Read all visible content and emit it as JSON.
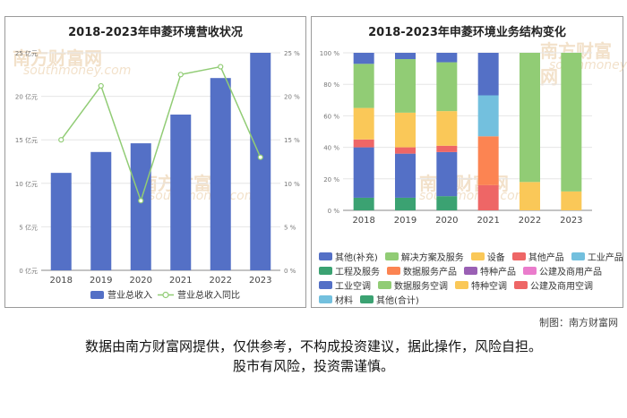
{
  "credit": "制图：南方财富网",
  "disclaimer": {
    "line1": "数据由南方财富网提供，仅供参考，不构成投资建议，据此操作，风险自担。",
    "line2": "股市有风险，投资需谨慎。"
  },
  "watermark": {
    "cn": "南方财富网",
    "en": "southmoney.com"
  },
  "colors": {
    "revenue": "#5470c6",
    "yoy": "#91cc75",
    "other_supp": "#5470c6",
    "solution": "#91cc75",
    "equipment": "#fac858",
    "other_products": "#ee6666",
    "industrial_products": "#73c0de",
    "engineering": "#3ba272",
    "data_service_products": "#fc8452",
    "special_products": "#9a60b4",
    "public_commercial_products": "#ea7ccc",
    "industrial_ac": "#5470c6",
    "data_service_ac": "#91cc75",
    "special_ac": "#fac858",
    "public_commercial_ac": "#ee6666",
    "materials": "#73c0de",
    "other_total": "#3ba272"
  },
  "chart_data": [
    {
      "type": "bar",
      "title": "2018-2023年申菱环境营收状况",
      "categories": [
        "2018",
        "2019",
        "2020",
        "2021",
        "2022",
        "2023"
      ],
      "series": [
        {
          "name": "营业总收入",
          "kind": "bar",
          "axis": "left",
          "color": "#5470c6",
          "values": [
            11.2,
            13.6,
            14.6,
            17.9,
            22.1,
            25.0
          ]
        },
        {
          "name": "营业总收入同比",
          "kind": "line",
          "axis": "right",
          "color": "#91cc75",
          "values": [
            15.0,
            21.2,
            8.0,
            22.5,
            23.4,
            13.0
          ]
        }
      ],
      "y_left": {
        "min": 0,
        "max": 25,
        "step": 5,
        "ticks": [
          "0 亿元",
          "5 亿元",
          "10 亿元",
          "15 亿元",
          "20 亿元",
          "25 亿元"
        ]
      },
      "y_right": {
        "min": 0,
        "max": 25,
        "step": 5,
        "ticks": [
          "0 %",
          "5 %",
          "10 %",
          "15 %",
          "20 %",
          "25 %"
        ]
      },
      "grid": true,
      "legend": "bottom"
    },
    {
      "type": "bar",
      "stacked": true,
      "title": "2018-2023年申菱环境业务结构变化",
      "categories": [
        "2018",
        "2019",
        "2020",
        "2021",
        "2022",
        "2023"
      ],
      "y_ticks": [
        "0 %",
        "20 %",
        "40 %",
        "60 %",
        "80 %",
        "100 %"
      ],
      "ylim": [
        0,
        100
      ],
      "grid": true,
      "legend": "bottom",
      "series": [
        {
          "name": "其他(合计)",
          "color": "#3ba272",
          "values": [
            8,
            8,
            9,
            0,
            0,
            0
          ]
        },
        {
          "name": "材料",
          "color": "#73c0de",
          "values": [
            0,
            0,
            0,
            0,
            0,
            0
          ]
        },
        {
          "name": "公建及商用空调",
          "color": "#ee6666",
          "values": [
            0,
            0,
            0,
            16,
            0,
            0
          ]
        },
        {
          "name": "特种空调",
          "color": "#fac858",
          "values": [
            0,
            0,
            0,
            0,
            18,
            12
          ]
        },
        {
          "name": "数据服务空调",
          "color": "#91cc75",
          "values": [
            0,
            0,
            0,
            0,
            82,
            88
          ]
        },
        {
          "name": "工业空调",
          "color": "#5470c6",
          "values": [
            32,
            28,
            28,
            0,
            0,
            0
          ]
        },
        {
          "name": "公建及商用产品",
          "color": "#ea7ccc",
          "values": [
            0,
            0,
            0,
            0,
            0,
            0
          ]
        },
        {
          "name": "特种产品",
          "color": "#9a60b4",
          "values": [
            0,
            0,
            0,
            0,
            0,
            0
          ]
        },
        {
          "name": "数据服务产品",
          "color": "#fc8452",
          "values": [
            0,
            0,
            0,
            31,
            0,
            0
          ]
        },
        {
          "name": "工程及服务",
          "color": "#3ba272",
          "values": [
            0,
            0,
            0,
            0,
            0,
            0
          ]
        },
        {
          "name": "工业产品",
          "color": "#73c0de",
          "values": [
            0,
            0,
            0,
            26,
            0,
            0
          ]
        },
        {
          "name": "其他产品",
          "color": "#ee6666",
          "values": [
            5,
            4,
            4,
            0,
            0,
            0
          ]
        },
        {
          "name": "设备",
          "color": "#fac858",
          "values": [
            20,
            22,
            22,
            0,
            0,
            0
          ]
        },
        {
          "name": "解决方案及服务",
          "color": "#91cc75",
          "values": [
            28,
            34,
            31,
            0,
            0,
            0
          ]
        },
        {
          "name": "其他(补充)",
          "color": "#5470c6",
          "values": [
            7,
            4,
            6,
            27,
            0,
            0
          ]
        }
      ],
      "legend_items": [
        "其他(补充)",
        "解决方案及服务",
        "设备",
        "其他产品",
        "工业产品",
        "工程及服务",
        "数据服务产品",
        "特种产品",
        "公建及商用产品",
        "工业空调",
        "数据服务空调",
        "特种空调",
        "公建及商用空调",
        "材料",
        "其他(合计)"
      ]
    }
  ]
}
